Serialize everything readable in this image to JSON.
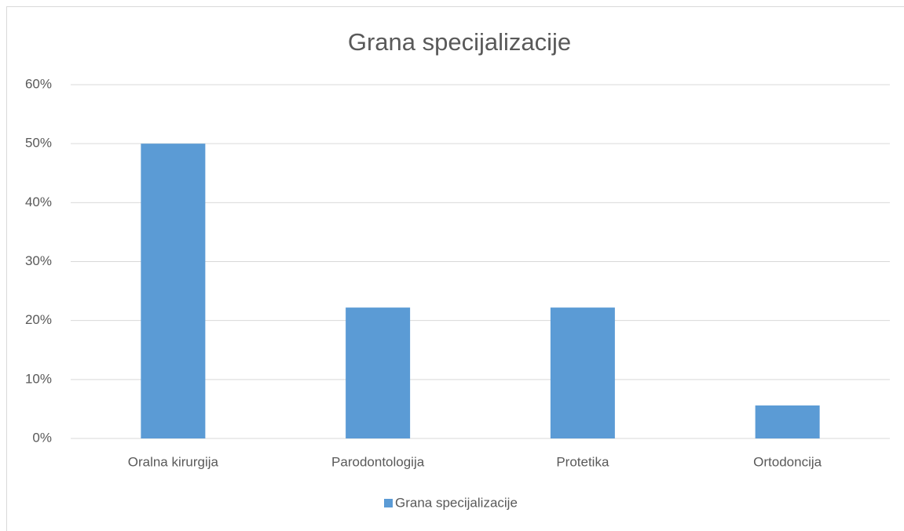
{
  "chart_data": {
    "type": "bar",
    "title": "Grana specijalizacije",
    "categories": [
      "Oralna kirurgija",
      "Parodontologija",
      "Protetika",
      "Ortodoncija"
    ],
    "series": [
      {
        "name": "Grana specijalizacije",
        "color": "#5b9bd5",
        "values": [
          50,
          22.2,
          22.2,
          5.6
        ]
      }
    ],
    "ylim": [
      0,
      60
    ],
    "yticks": [
      {
        "value": 0,
        "label": "0%"
      },
      {
        "value": 10,
        "label": "10%"
      },
      {
        "value": 20,
        "label": "20%"
      },
      {
        "value": 30,
        "label": "30%"
      },
      {
        "value": 40,
        "label": "40%"
      },
      {
        "value": 50,
        "label": "50%"
      },
      {
        "value": 60,
        "label": "60%"
      }
    ],
    "grid": true,
    "legend": "bottom"
  }
}
